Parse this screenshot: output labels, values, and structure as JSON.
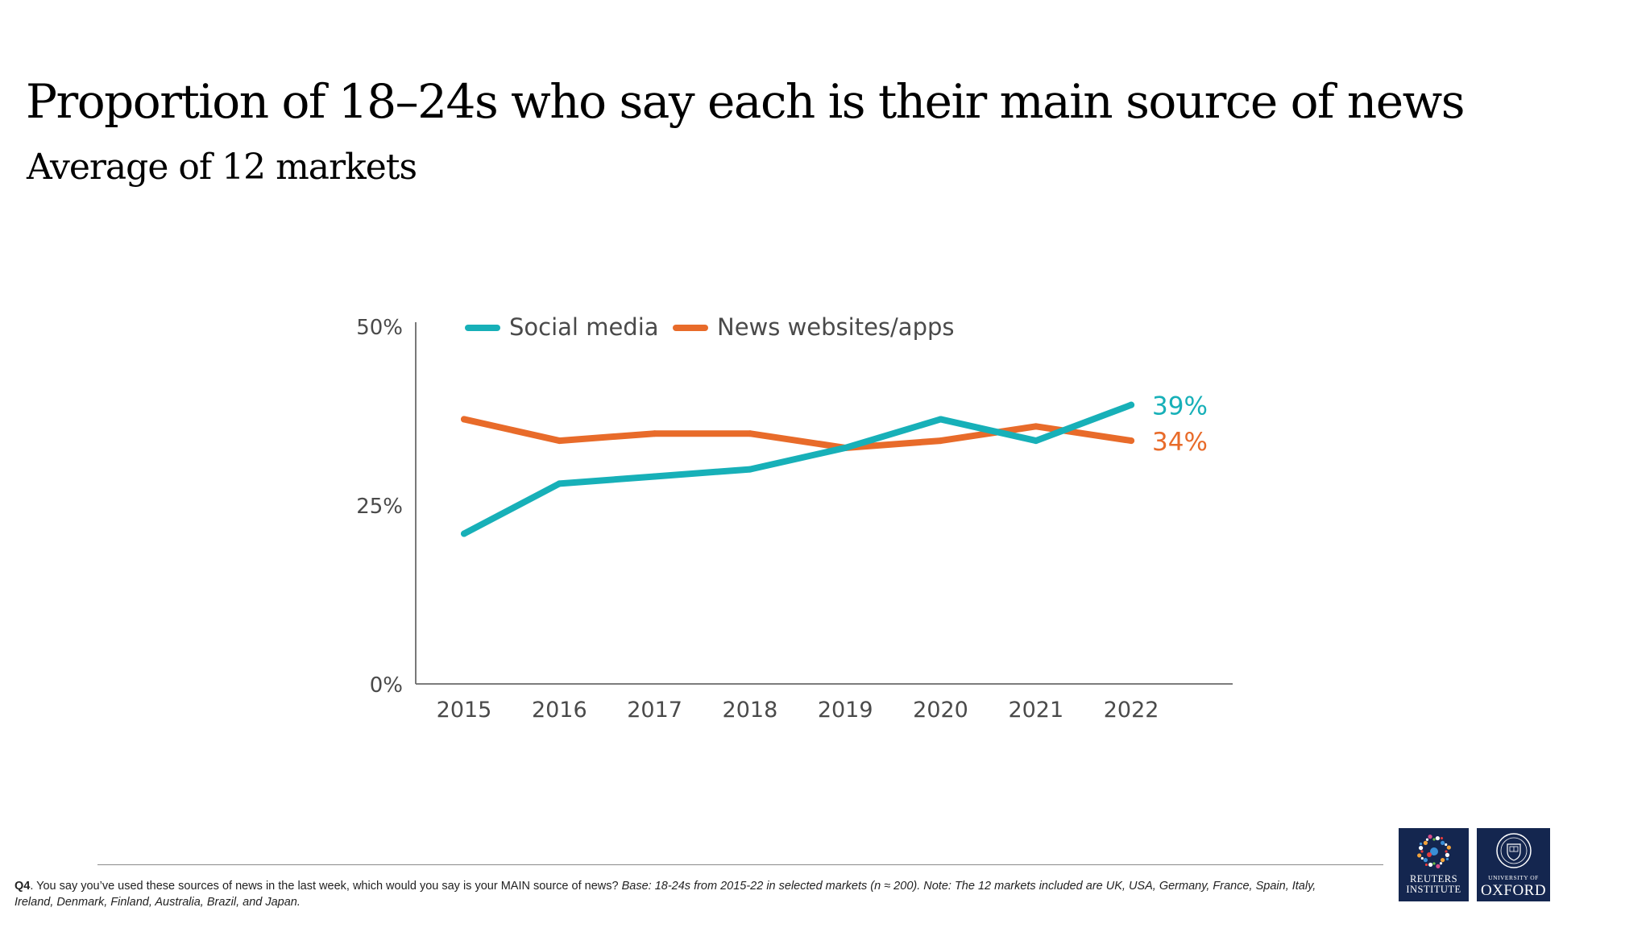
{
  "title": "Proportion of 18–24s who say each is their main source of news",
  "subtitle": "Average of 12 markets",
  "colors": {
    "social": "#17b0b8",
    "news": "#e86b2a",
    "axis": "#6a6a6a",
    "text": "#4a4a4a",
    "logo_bg": "#14264f"
  },
  "chart_data": {
    "type": "line",
    "x": [
      "2015",
      "2016",
      "2017",
      "2018",
      "2019",
      "2020",
      "2021",
      "2022"
    ],
    "ylim": [
      0,
      50
    ],
    "yticks": [
      "0%",
      "25%",
      "50%"
    ],
    "legend_position": "top-left",
    "grid": false,
    "series": [
      {
        "name": "Social media",
        "color": "#17b0b8",
        "values": [
          21,
          28,
          29,
          30,
          33,
          37,
          34,
          39
        ],
        "end_label": "39%"
      },
      {
        "name": "News websites/apps",
        "color": "#e86b2a",
        "values": [
          37,
          34,
          35,
          35,
          33,
          34,
          36,
          34
        ],
        "end_label": "34%"
      }
    ]
  },
  "footnote": {
    "q": "Q4",
    "question": ". You say you’ve used these sources of news in the last week, which would you say is your MAIN source of news? ",
    "note": "Base: 18-24s from 2015-22 in selected markets (n ≈ 200). Note: The 12 markets included are UK, USA, Germany, France, Spain, Italy, Ireland, Denmark, Finland, Australia, Brazil, and Japan."
  },
  "logos": {
    "reuters_line1": "REUTERS",
    "reuters_line2": "INSTITUTE",
    "oxford_small": "UNIVERSITY OF",
    "oxford_big": "OXFORD"
  }
}
